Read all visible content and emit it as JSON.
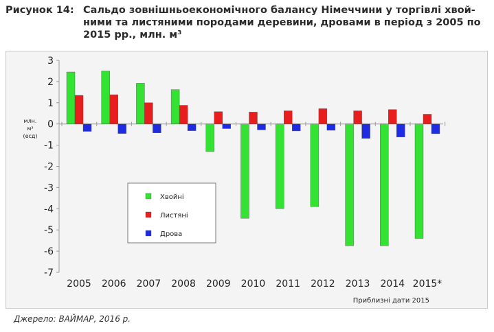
{
  "figure": {
    "label": "Рисунок 14:",
    "title": "Сальдо зовнішньоекономічного балансу Німеччини у торгівлі хвой-ними та листяними породами деревини, дровами в період з 2005 по 2015 рр., млн. м³",
    "source": "Джерело: ВАЙМАР, 2016 р."
  },
  "chart_data": {
    "type": "bar",
    "categories": [
      "2005",
      "2006",
      "2007",
      "2008",
      "2009",
      "2010",
      "2011",
      "2012",
      "2013",
      "2014",
      "2015*"
    ],
    "series": [
      {
        "name": "Хвойні",
        "color": "#33e233",
        "values": [
          2.45,
          2.5,
          1.92,
          1.62,
          -1.3,
          -4.45,
          -4.0,
          -3.9,
          -5.75,
          -5.75,
          -5.4
        ]
      },
      {
        "name": "Листяні",
        "color": "#e81d1d",
        "values": [
          1.35,
          1.38,
          1.0,
          0.88,
          0.58,
          0.56,
          0.62,
          0.72,
          0.62,
          0.68,
          0.46
        ]
      },
      {
        "name": "Дрова",
        "color": "#1f2be0",
        "values": [
          -0.35,
          -0.45,
          -0.42,
          -0.32,
          -0.22,
          -0.28,
          -0.33,
          -0.3,
          -0.68,
          -0.62,
          -0.46
        ]
      }
    ],
    "ylabel": "млн. м³ (есд)",
    "ylim": [
      -7,
      3
    ],
    "yticks": [
      "3",
      "2",
      "1",
      "0",
      "-1",
      "-2",
      "-3",
      "-4",
      "-5",
      "-6",
      "-7"
    ],
    "note": "Приблизні дати 2015",
    "legend_position": "center-left",
    "grid": false
  }
}
